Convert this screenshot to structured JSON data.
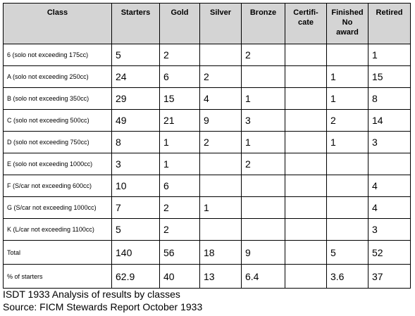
{
  "table": {
    "headers": [
      "Class",
      "Starters",
      "Gold",
      "Silver",
      "Bronze",
      "Certifi-cate",
      "Finished No award",
      "Retired"
    ],
    "rows": [
      [
        "6 (solo not exceeding 175cc)",
        "5",
        "2",
        "",
        "2",
        "",
        "",
        "1"
      ],
      [
        "A (solo not exceeding 250cc)",
        "24",
        "6",
        "2",
        "",
        "",
        "1",
        "15"
      ],
      [
        "B (solo not exceeding 350cc)",
        "29",
        "15",
        "4",
        "1",
        "",
        "1",
        "8"
      ],
      [
        "C (solo not exceeding 500cc)",
        "49",
        "21",
        "9",
        "3",
        "",
        "2",
        "14"
      ],
      [
        "D (solo not exceeding 750cc)",
        "8",
        "1",
        "2",
        "1",
        "",
        "1",
        "3"
      ],
      [
        "E (solo not exceeding 1000cc)",
        "3",
        "1",
        "",
        "2",
        "",
        "",
        ""
      ],
      [
        "F (S/car not exceeding 600cc)",
        "10",
        "6",
        "",
        "",
        "",
        "",
        "4"
      ],
      [
        "G (S/car not exceeding 1000cc)",
        "7",
        "2",
        "1",
        "",
        "",
        "",
        "4"
      ],
      [
        "K (L/car not exceeding 1100cc)",
        "5",
        "2",
        "",
        "",
        "",
        "",
        "3"
      ],
      [
        "Total",
        "140",
        "56",
        "18",
        "9",
        "",
        "5",
        "52"
      ],
      [
        "% of starters",
        "62.9",
        "40",
        "13",
        "6.4",
        "",
        "3.6",
        "37"
      ]
    ]
  },
  "caption": {
    "line1": "ISDT 1933 Analysis of results by classes",
    "line2": "Source: FICM Stewards Report October 1933"
  }
}
